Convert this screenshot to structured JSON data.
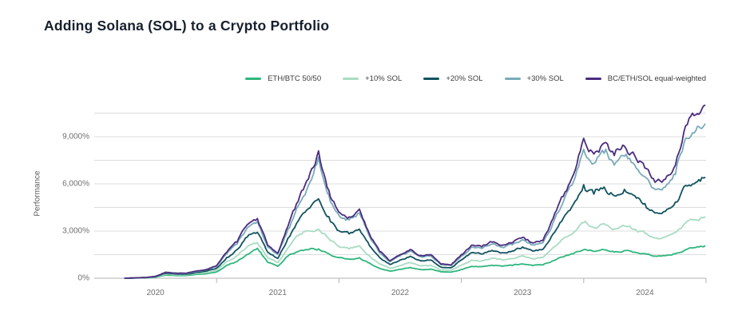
{
  "header": {
    "title": "Adding Solana (SOL) to a Crypto Portfolio"
  },
  "colors": {
    "background": "#ffffff",
    "title_text": "#16202e",
    "grid_line": "#dcdcdc",
    "axis_line": "#b3b3b3",
    "tick_text": "#6f6f6f",
    "legend_text": "#3c3c3c"
  },
  "chart_data": {
    "type": "line",
    "title": "Adding Solana (SOL) to a Crypto Portfolio",
    "xlabel": "",
    "ylabel": "Performance",
    "legend_position": "top-right",
    "grid": true,
    "x_unit": "decimal_year",
    "x_range": [
      2020,
      2025
    ],
    "ylim": [
      0,
      11200
    ],
    "grid_step_pct": 1500,
    "y_ticks": [
      {
        "value": 0,
        "label": "0%"
      },
      {
        "value": 3000,
        "label": "3,000%"
      },
      {
        "value": 6000,
        "label": "6,000%"
      },
      {
        "value": 9000,
        "label": "9,000%"
      }
    ],
    "x_year_labels": [
      "2020",
      "2021",
      "2022",
      "2023",
      "2024"
    ],
    "x": [
      2020.25,
      2020.333,
      2020.417,
      2020.5,
      2020.583,
      2020.667,
      2020.75,
      2020.833,
      2020.917,
      2021.0,
      2021.083,
      2021.167,
      2021.25,
      2021.333,
      2021.417,
      2021.5,
      2021.583,
      2021.667,
      2021.75,
      2021.833,
      2021.917,
      2022.0,
      2022.083,
      2022.167,
      2022.25,
      2022.333,
      2022.417,
      2022.5,
      2022.583,
      2022.667,
      2022.75,
      2022.833,
      2022.917,
      2023.0,
      2023.083,
      2023.167,
      2023.25,
      2023.333,
      2023.417,
      2023.5,
      2023.583,
      2023.667,
      2023.75,
      2023.833,
      2023.917,
      2024.0,
      2024.083,
      2024.167,
      2024.25,
      2024.333,
      2024.417,
      2024.5,
      2024.583,
      2024.667,
      2024.75,
      2024.833,
      2024.917,
      2024.99
    ],
    "series": [
      {
        "name": "ETH/BTC 50/50",
        "color": "#2eb67d",
        "values": [
          0,
          12,
          25,
          65,
          195,
          172,
          166,
          242,
          292,
          405,
          830,
          1060,
          1510,
          1900,
          1010,
          760,
          1410,
          1700,
          1810,
          1860,
          1560,
          1310,
          1210,
          1310,
          960,
          625,
          455,
          565,
          685,
          555,
          585,
          405,
          385,
          565,
          755,
          735,
          825,
          765,
          805,
          905,
          805,
          845,
          1110,
          1360,
          1560,
          1810,
          1710,
          1810,
          1660,
          1760,
          1660,
          1560,
          1410,
          1430,
          1560,
          1810,
          1950,
          2050
        ]
      },
      {
        "name": "+10% SOL",
        "color": "#a9dcc3",
        "values": [
          0,
          15,
          30,
          80,
          245,
          218,
          206,
          300,
          362,
          515,
          1060,
          1420,
          2020,
          2260,
          1310,
          990,
          1920,
          2720,
          3020,
          3120,
          2520,
          2010,
          1860,
          2060,
          1410,
          910,
          630,
          810,
          990,
          790,
          830,
          530,
          500,
          830,
          1160,
          1110,
          1270,
          1160,
          1240,
          1430,
          1240,
          1320,
          1960,
          2520,
          2920,
          3520,
          3220,
          3470,
          3120,
          3320,
          3120,
          2870,
          2570,
          2620,
          2920,
          3520,
          3700,
          3900
        ]
      },
      {
        "name": "+20% SOL",
        "color": "#11535f",
        "values": [
          0,
          18,
          36,
          96,
          305,
          268,
          252,
          368,
          452,
          645,
          1320,
          1820,
          2620,
          2920,
          1660,
          1260,
          2540,
          3640,
          4420,
          5050,
          3920,
          3020,
          2820,
          3120,
          2060,
          1310,
          880,
          1160,
          1400,
          1110,
          1160,
          710,
          670,
          1160,
          1620,
          1540,
          1770,
          1620,
          1730,
          1990,
          1730,
          1840,
          2820,
          3820,
          4720,
          5950,
          5350,
          5800,
          5250,
          5650,
          5250,
          4750,
          4150,
          4250,
          4850,
          5900,
          6100,
          6400
        ]
      },
      {
        "name": "+30% SOL",
        "color": "#79aab8",
        "values": [
          0,
          22,
          42,
          112,
          360,
          312,
          294,
          428,
          532,
          760,
          1560,
          2160,
          3200,
          3600,
          2000,
          1500,
          3100,
          4600,
          5900,
          7700,
          5300,
          4000,
          3700,
          4150,
          2650,
          1620,
          1050,
          1420,
          1730,
          1370,
          1420,
          860,
          810,
          1420,
          1980,
          1890,
          2170,
          1980,
          2120,
          2450,
          2120,
          2260,
          3550,
          4850,
          6150,
          8200,
          7300,
          7950,
          7200,
          7750,
          7200,
          6450,
          5650,
          5800,
          6600,
          8900,
          9400,
          9800
        ]
      },
      {
        "name": "BC/ETH/SOL equal-weighted",
        "color": "#4b2c7f",
        "values": [
          0,
          25,
          45,
          120,
          380,
          330,
          310,
          450,
          560,
          800,
          1650,
          2300,
          3400,
          3800,
          2100,
          1600,
          3300,
          4900,
          6300,
          8100,
          5600,
          4200,
          3900,
          4400,
          2800,
          1700,
          1100,
          1500,
          1830,
          1450,
          1500,
          900,
          850,
          1500,
          2100,
          2000,
          2300,
          2100,
          2250,
          2600,
          2250,
          2400,
          3800,
          5200,
          6600,
          8900,
          7900,
          8600,
          7800,
          8400,
          7800,
          7000,
          6100,
          6300,
          7200,
          9700,
          10400,
          11000
        ]
      }
    ],
    "noise_amplitude": 0.042
  }
}
